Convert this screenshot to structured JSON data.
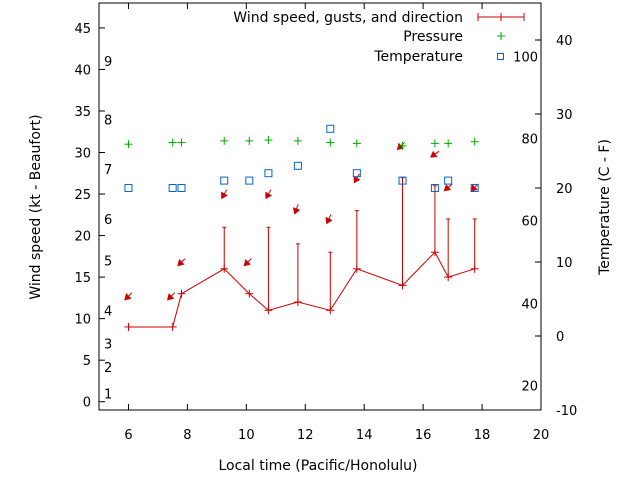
{
  "chart_data": {
    "type": "line",
    "xlabel": "Local time (Pacific/Honolulu)",
    "ylabel_left": "Wind speed (kt - Beaufort)",
    "ylabel_right": "Temperature (C - F)",
    "xlim": [
      5,
      20
    ],
    "ylim_wind": [
      -1,
      48
    ],
    "ylim_temp_c": [
      -10,
      45
    ],
    "x_ticks": [
      6,
      8,
      10,
      12,
      14,
      16,
      18,
      20
    ],
    "wind_ticks": [
      0,
      5,
      10,
      15,
      20,
      25,
      30,
      35,
      40,
      45
    ],
    "beaufort_ticks": [
      {
        "label": "1",
        "kt": 1
      },
      {
        "label": "2",
        "kt": 4.2
      },
      {
        "label": "3",
        "kt": 7
      },
      {
        "label": "4",
        "kt": 11
      },
      {
        "label": "5",
        "kt": 17
      },
      {
        "label": "6",
        "kt": 22
      },
      {
        "label": "7",
        "kt": 28
      },
      {
        "label": "8",
        "kt": 34
      },
      {
        "label": "9",
        "kt": 41
      }
    ],
    "celsius_ticks": [
      -10,
      0,
      10,
      20,
      30,
      40
    ],
    "fahrenheit_ticks": [
      {
        "label": "20",
        "c": -6.7
      },
      {
        "label": "40",
        "c": 4.4
      },
      {
        "label": "60",
        "c": 15.6
      },
      {
        "label": "80",
        "c": 26.7
      },
      {
        "label": "100",
        "c": 37.8
      }
    ],
    "legend": {
      "position": "top-right",
      "entries": [
        "Wind speed, gusts, and direction",
        "Pressure",
        "Temperature"
      ]
    },
    "colors": {
      "wind": "#cc0000",
      "pressure": "#00aa00",
      "temperature": "#0066cc"
    },
    "wind": {
      "x": [
        6,
        7.5,
        7.8,
        9.25,
        10.1,
        10.75,
        11.75,
        12.85,
        13.75,
        15.3,
        16.4,
        16.85,
        17.75
      ],
      "speed": [
        9,
        9,
        13,
        16,
        13,
        11,
        12,
        11,
        16,
        14,
        18,
        15,
        16
      ],
      "gust": [
        null,
        null,
        null,
        21,
        null,
        21,
        19,
        18,
        23,
        27,
        26,
        22,
        22
      ]
    },
    "wind_arrows": [
      {
        "x": 6,
        "y": 12.7,
        "direction_deg": 45
      },
      {
        "x": 7.45,
        "y": 12.7,
        "direction_deg": 45
      },
      {
        "x": 7.8,
        "y": 16.8,
        "direction_deg": 45
      },
      {
        "x": 9.25,
        "y": 25,
        "direction_deg": 60
      },
      {
        "x": 10.05,
        "y": 16.8,
        "direction_deg": 45
      },
      {
        "x": 10.75,
        "y": 25,
        "direction_deg": 60
      },
      {
        "x": 11.7,
        "y": 23.2,
        "direction_deg": 70
      },
      {
        "x": 12.8,
        "y": 22,
        "direction_deg": 65
      },
      {
        "x": 13.75,
        "y": 26.9,
        "direction_deg": 60
      },
      {
        "x": 15.25,
        "y": 30.8,
        "direction_deg": 45
      },
      {
        "x": 16.4,
        "y": 29.8,
        "direction_deg": 35
      },
      {
        "x": 16.85,
        "y": 25.8,
        "direction_deg": 40
      },
      {
        "x": 17.75,
        "y": 25.8,
        "direction_deg": 45
      }
    ],
    "pressure": {
      "x": [
        6,
        7.5,
        7.8,
        9.25,
        10.1,
        10.75,
        11.75,
        12.85,
        13.75,
        15.3,
        16.4,
        16.85,
        17.75
      ],
      "wind_scale_y": [
        31,
        31.2,
        31.2,
        31.4,
        31.4,
        31.5,
        31.4,
        31.2,
        31.1,
        30.8,
        31.1,
        31.1,
        31.3
      ]
    },
    "temperature": {
      "x": [
        6,
        7.5,
        7.8,
        9.25,
        10.1,
        10.75,
        11.75,
        12.85,
        13.75,
        15.3,
        16.4,
        16.85,
        17.75
      ],
      "c": [
        20,
        20,
        20,
        21,
        21,
        22,
        23,
        28,
        22,
        21,
        20,
        21,
        20
      ]
    }
  }
}
